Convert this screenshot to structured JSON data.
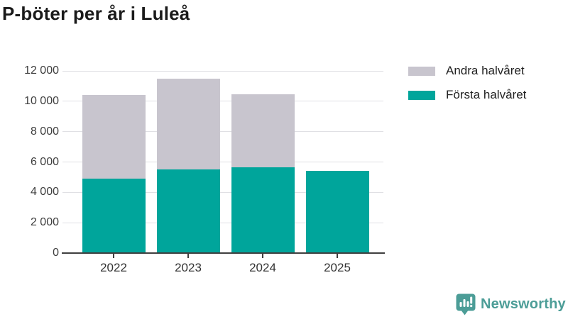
{
  "title": "P-böter per år i Luleå",
  "colors": {
    "first_half": "#00a59b",
    "second_half": "#c8c5ce",
    "axis": "#3f3f3f",
    "grid": "#e0e0e4",
    "text": "#1a1a1a",
    "logo": "#4c9d97"
  },
  "chart_data": {
    "type": "bar",
    "stacked": true,
    "title": "P-böter per år i Luleå",
    "categories": [
      "2022",
      "2023",
      "2024",
      "2025"
    ],
    "series": [
      {
        "name": "Första halvåret",
        "color_key": "first_half",
        "values": [
          4900,
          5500,
          5650,
          5400
        ]
      },
      {
        "name": "Andra halvåret",
        "color_key": "second_half",
        "values": [
          5500,
          6000,
          4800,
          0
        ]
      }
    ],
    "totals": [
      10400,
      11500,
      10450,
      5400
    ],
    "xlabel": "",
    "ylabel": "",
    "ylim": [
      0,
      12000
    ],
    "yticks": [
      0,
      2000,
      4000,
      6000,
      8000,
      10000,
      12000
    ],
    "ytick_labels": [
      "0",
      "2 000",
      "4 000",
      "6 000",
      "8 000",
      "10 000",
      "12 000"
    ],
    "grid": "horizontal",
    "legend_position": "top-right",
    "legend": [
      {
        "label": "Andra halvåret",
        "color_key": "second_half"
      },
      {
        "label": "Första halvåret",
        "color_key": "first_half"
      }
    ]
  },
  "branding": {
    "logo_text": "Newsworthy",
    "logo_icon": "bar-chart-speech-bubble-icon"
  }
}
